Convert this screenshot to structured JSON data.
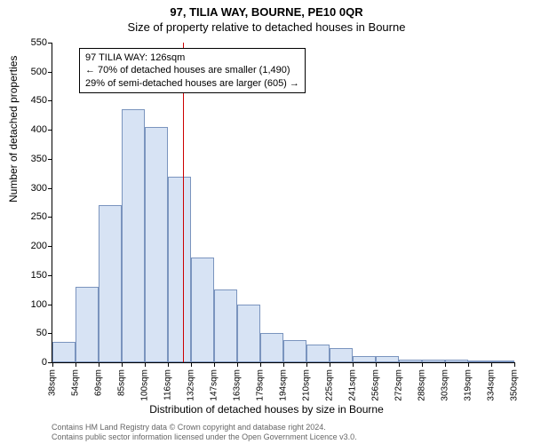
{
  "chart": {
    "type": "histogram",
    "title_main": "97, TILIA WAY, BOURNE, PE10 0QR",
    "title_sub": "Size of property relative to detached houses in Bourne",
    "xlabel": "Distribution of detached houses by size in Bourne",
    "ylabel": "Number of detached properties",
    "ylim": [
      0,
      550
    ],
    "ytick_step": 50,
    "yticks": [
      0,
      50,
      100,
      150,
      200,
      250,
      300,
      350,
      400,
      450,
      500,
      550
    ],
    "xticks": [
      "38sqm",
      "54sqm",
      "69sqm",
      "85sqm",
      "100sqm",
      "116sqm",
      "132sqm",
      "147sqm",
      "163sqm",
      "179sqm",
      "194sqm",
      "210sqm",
      "225sqm",
      "241sqm",
      "256sqm",
      "272sqm",
      "288sqm",
      "303sqm",
      "319sqm",
      "334sqm",
      "350sqm"
    ],
    "bar_fill": "#d7e3f4",
    "bar_border": "#7a94be",
    "background_color": "#ffffff",
    "ref_line_color": "#cc0000",
    "ref_value_sqm": 126,
    "values": [
      35,
      130,
      270,
      435,
      405,
      320,
      180,
      125,
      100,
      50,
      38,
      30,
      25,
      10,
      10,
      5,
      5,
      5,
      3,
      3
    ],
    "annotation": {
      "line1": "97 TILIA WAY: 126sqm",
      "line2": "← 70% of detached houses are smaller (1,490)",
      "line3": "29% of semi-detached houses are larger (605) →"
    },
    "footer_line1": "Contains HM Land Registry data © Crown copyright and database right 2024.",
    "footer_line2": "Contains public sector information licensed under the Open Government Licence v3.0."
  }
}
